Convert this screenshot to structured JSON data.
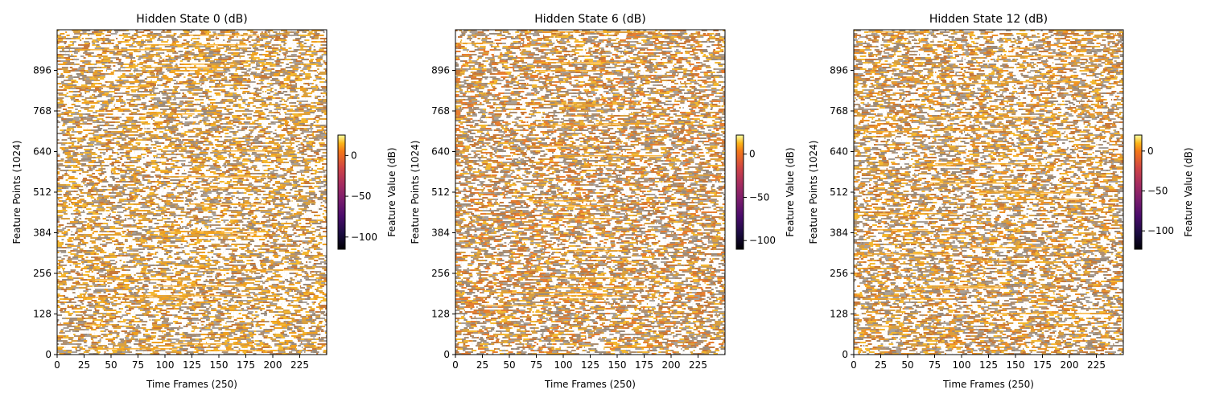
{
  "chart_data": [
    {
      "type": "heatmap",
      "title": "Hidden State 0 (dB)",
      "xlabel": "Time Frames (250)",
      "ylabel": "Feature Points (1024)",
      "xlim": [
        0,
        250
      ],
      "ylim": [
        0,
        1024
      ],
      "xticks": [
        0,
        25,
        50,
        75,
        100,
        125,
        150,
        175,
        200,
        225
      ],
      "yticks": [
        0,
        128,
        256,
        384,
        512,
        640,
        768,
        896
      ],
      "colorbar": {
        "label": "Feature Value (dB)",
        "range": [
          -115,
          25
        ],
        "ticks": [
          -100,
          -50,
          0
        ]
      },
      "colormap": "inferno",
      "dominant_color": "#f0a020",
      "empty_fraction": 0.45,
      "seed": 7
    },
    {
      "type": "heatmap",
      "title": "Hidden State 6 (dB)",
      "xlabel": "Time Frames (250)",
      "ylabel": "Feature Points (1024)",
      "xlim": [
        0,
        250
      ],
      "ylim": [
        0,
        1024
      ],
      "xticks": [
        0,
        25,
        50,
        75,
        100,
        125,
        150,
        175,
        200,
        225
      ],
      "yticks": [
        0,
        128,
        256,
        384,
        512,
        640,
        768,
        896
      ],
      "colorbar": {
        "label": "Feature Value (dB)",
        "range": [
          -110,
          22
        ],
        "ticks": [
          -100,
          -50,
          0
        ]
      },
      "colormap": "inferno",
      "dominant_color": "#e87e30",
      "empty_fraction": 0.4,
      "seed": 13
    },
    {
      "type": "heatmap",
      "title": "Hidden State 12 (dB)",
      "xlabel": "Time Frames (250)",
      "ylabel": "Feature Points (1024)",
      "xlim": [
        0,
        250
      ],
      "ylim": [
        0,
        1024
      ],
      "xticks": [
        0,
        25,
        50,
        75,
        100,
        125,
        150,
        175,
        200,
        225
      ],
      "yticks": [
        0,
        128,
        256,
        384,
        512,
        640,
        768,
        896
      ],
      "colorbar": {
        "label": "Feature Value (dB)",
        "range": [
          -123,
          20
        ],
        "ticks": [
          -100,
          -50,
          0
        ]
      },
      "colormap": "inferno",
      "dominant_color": "#ee9228",
      "empty_fraction": 0.43,
      "seed": 29
    }
  ]
}
